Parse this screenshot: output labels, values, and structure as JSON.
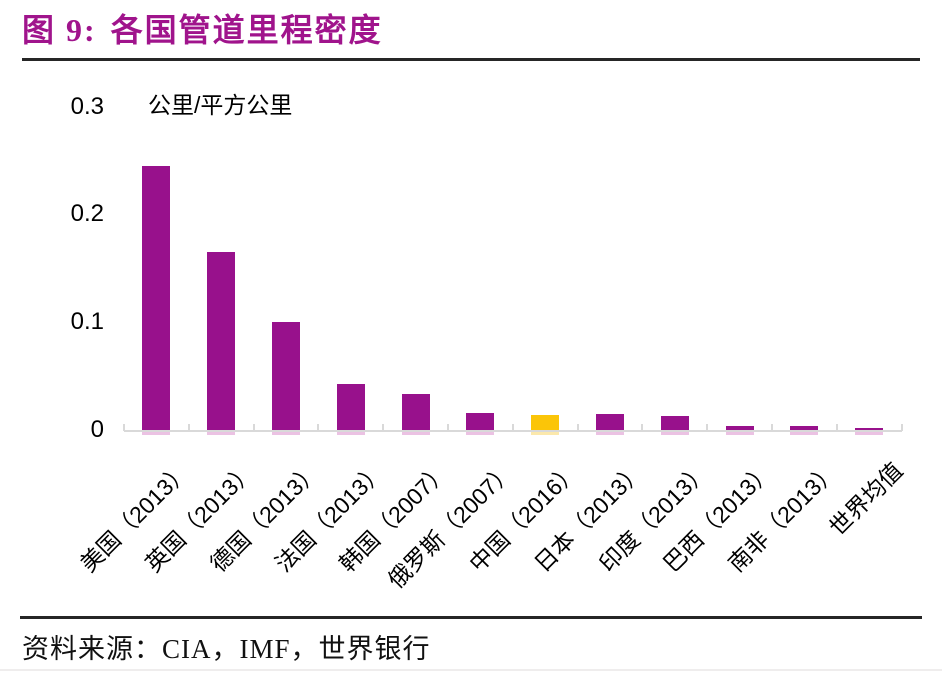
{
  "figure": {
    "label": "图 9:",
    "title": "各国管道里程密度"
  },
  "chart_data": {
    "type": "bar",
    "title": "各国管道里程密度",
    "unit_label": "公里/平方公里",
    "ylabel": "公里/平方公里",
    "xlabel": "",
    "ylim": [
      0,
      0.3
    ],
    "grid": false,
    "legend": "none",
    "categories": [
      "美国（2013）",
      "英国（2013）",
      "德国（2013）",
      "法国（2013）",
      "韩国（2007）",
      "俄罗斯（2007）",
      "中国（2016）",
      "日本（2013）",
      "印度（2013）",
      "巴西（2013）",
      "南非（2013）",
      "世界均值"
    ],
    "values": [
      0.245,
      0.165,
      0.1,
      0.043,
      0.033,
      0.016,
      0.014,
      0.015,
      0.013,
      0.004,
      0.004,
      0.002
    ],
    "highlight_index": 6,
    "y_ticks": [
      {
        "value": 0,
        "label": "0"
      },
      {
        "value": 0.1,
        "label": "0.1"
      },
      {
        "value": 0.2,
        "label": "0.2"
      },
      {
        "value": 0.3,
        "label": "0.3"
      }
    ]
  },
  "colors": {
    "title": "#A0148C",
    "bar_default": "#98118C",
    "bar_highlight": "#FBC508",
    "bar_shadow_default": "#EBC2E3",
    "bar_shadow_highlight": "#FBE8AC",
    "axis": "#D9D9D9",
    "rule_dark": "#262626",
    "rule_light": "#EFEDED"
  },
  "source": {
    "text": "资料来源：CIA，IMF，世界银行"
  }
}
